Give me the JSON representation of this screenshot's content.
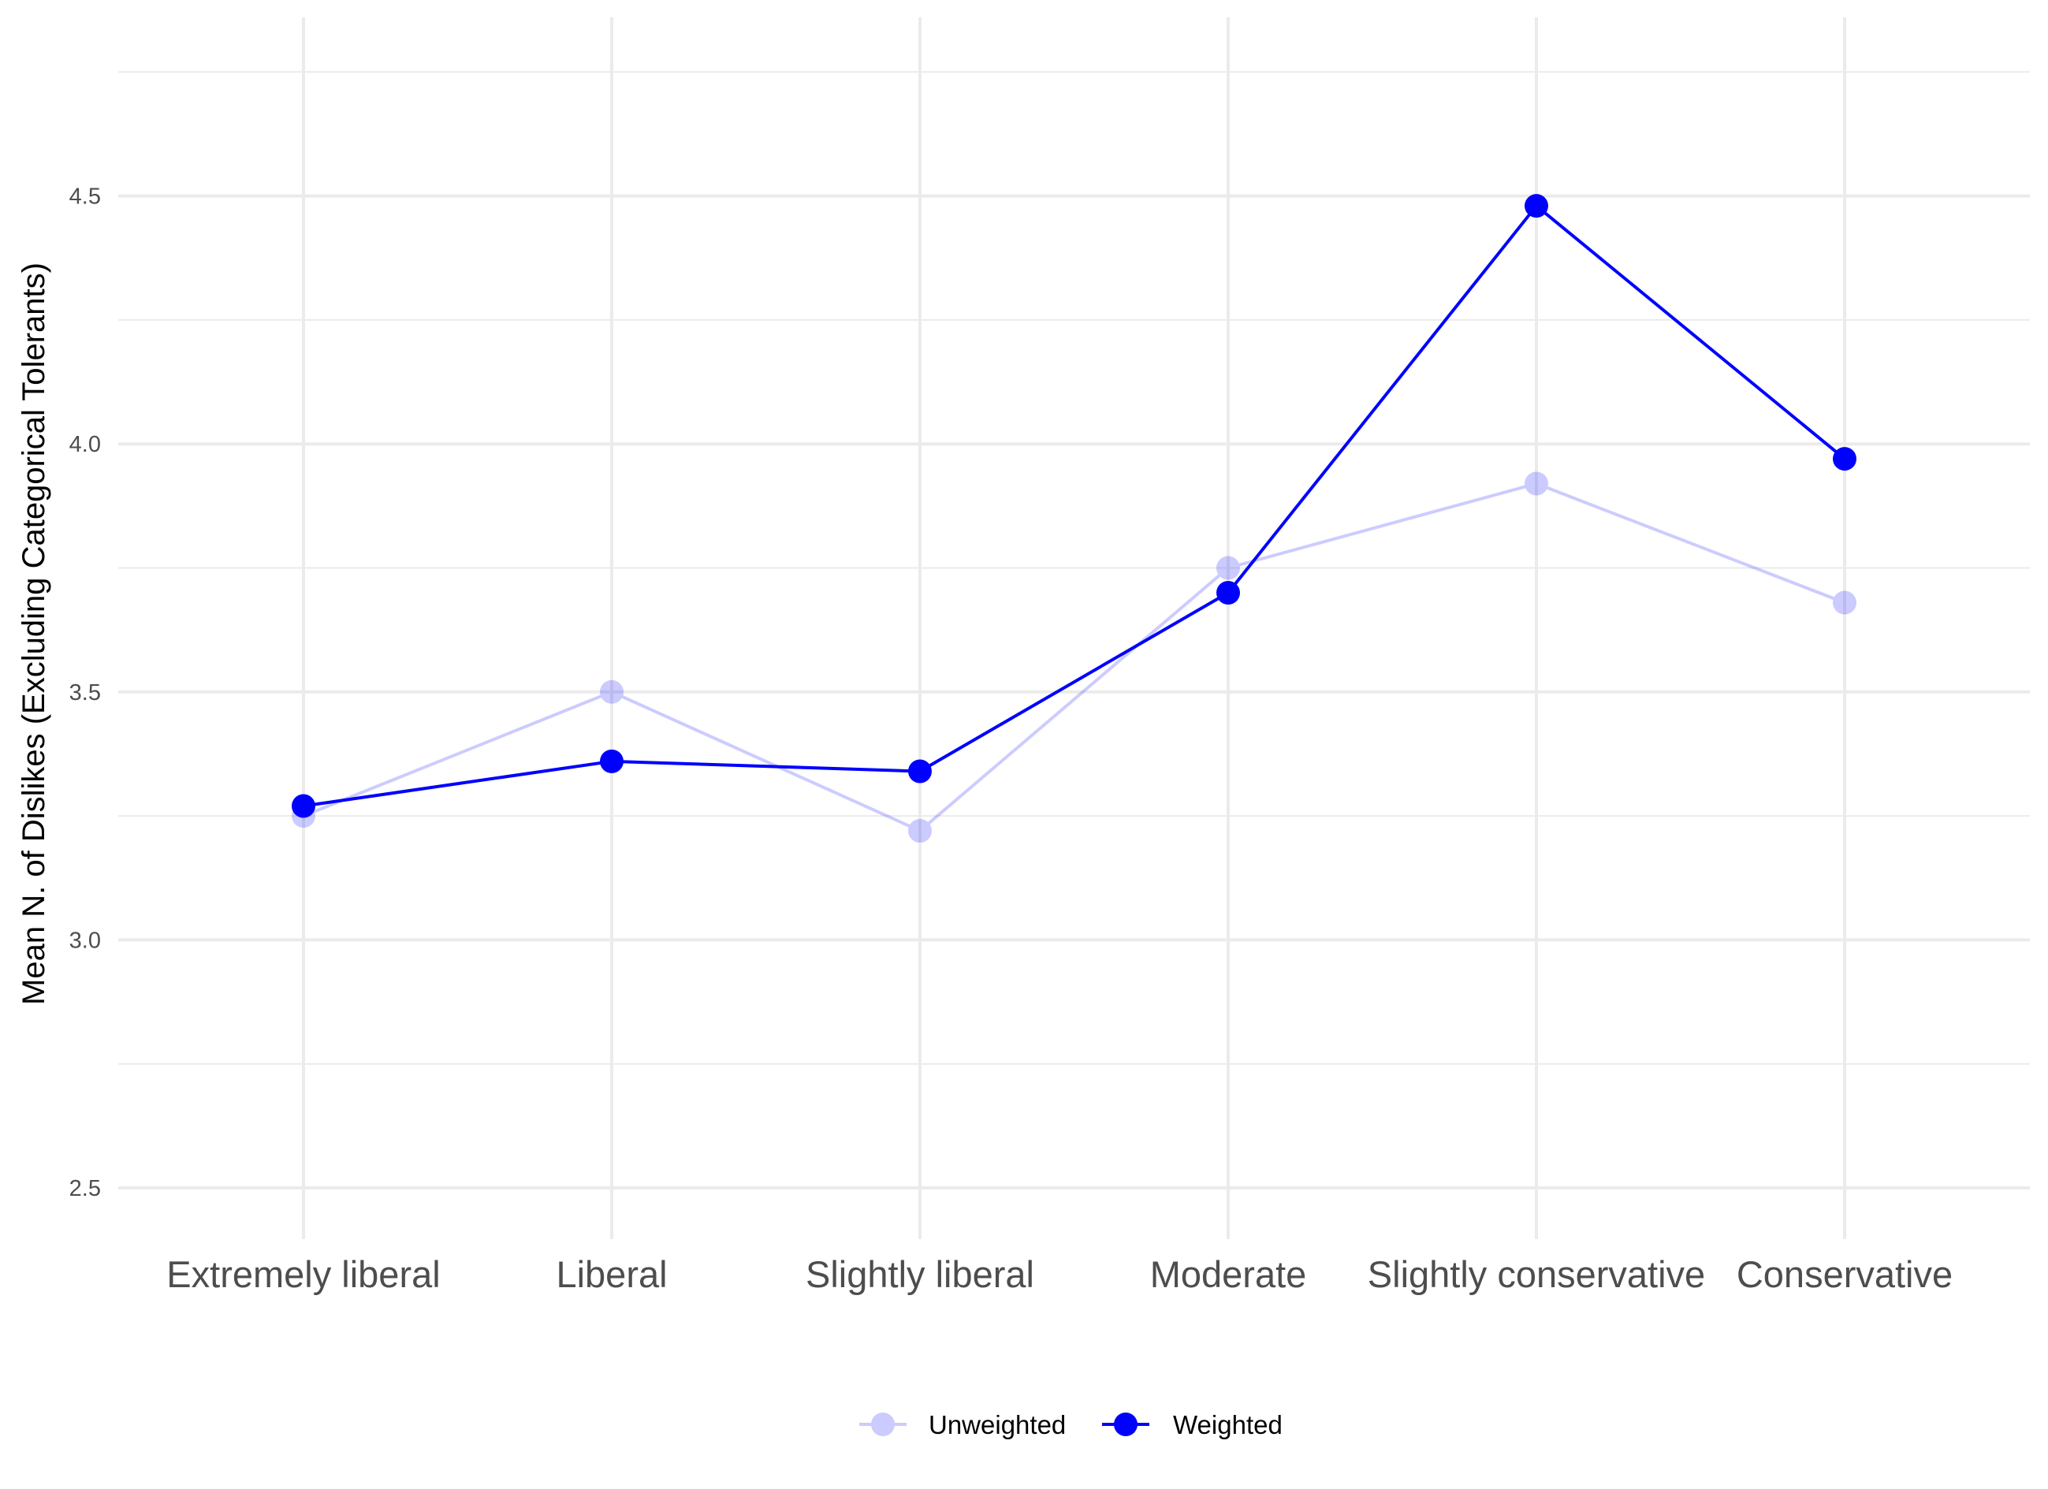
{
  "chart_data": {
    "type": "line",
    "title": "",
    "xlabel": "",
    "ylabel": "Mean N. of Dislikes (Excluding Categorical Tolerants)",
    "categories": [
      "Extremely liberal",
      "Liberal",
      "Slightly liberal",
      "Moderate",
      "Slightly conservative",
      "Conservative"
    ],
    "ylim": [
      2.4,
      4.75
    ],
    "yticks": [
      "2.5",
      "3.0",
      "3.5",
      "4.0",
      "4.5"
    ],
    "grid": true,
    "legend_position": "bottom",
    "series": [
      {
        "name": "Unweighted",
        "values": [
          3.25,
          3.5,
          3.22,
          3.75,
          3.92,
          3.68
        ],
        "color": "#0000ff",
        "opacity": 0.2
      },
      {
        "name": "Weighted",
        "values": [
          3.27,
          3.36,
          3.34,
          3.7,
          4.48,
          3.97
        ],
        "color": "#0000ff",
        "opacity": 1
      }
    ]
  }
}
